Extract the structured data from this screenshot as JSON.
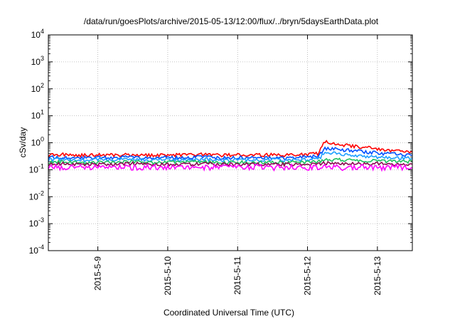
{
  "chart_data": {
    "type": "line",
    "title": "/data/run/goesPlots/archive/2015-05-13/12:00/flux/../bryn/5daysEarthData.plot",
    "xlabel": "Coordinated Universal Time (UTC)",
    "ylabel": "cSv/day",
    "x_scale": "time",
    "y_scale": "log",
    "xlim": [
      "2015-05-08 07:00",
      "2015-05-13 12:00"
    ],
    "ylim": [
      0.0001,
      10000
    ],
    "grid": true,
    "legend": "none",
    "x_ticks": [
      "2015-5-9",
      "2015-5-10",
      "2015-5-11",
      "2015-5-12",
      "2015-5-13"
    ],
    "x_tick_dates": [
      "2015-05-09",
      "2015-05-10",
      "2015-05-11",
      "2015-05-12",
      "2015-05-13"
    ],
    "y_ticks": [
      {
        "base": "10",
        "exp": "-4",
        "value": 0.0001
      },
      {
        "base": "10",
        "exp": "-3",
        "value": 0.001
      },
      {
        "base": "10",
        "exp": "-2",
        "value": 0.01
      },
      {
        "base": "10",
        "exp": "-1",
        "value": 0.1
      },
      {
        "base": "10",
        "exp": "0",
        "value": 1
      },
      {
        "base": "10",
        "exp": "1",
        "value": 10
      },
      {
        "base": "10",
        "exp": "2",
        "value": 100
      },
      {
        "base": "10",
        "exp": "3",
        "value": 1000
      },
      {
        "base": "10",
        "exp": "4",
        "value": 10000
      }
    ],
    "series": [
      {
        "color": "#ff0000",
        "values": [
          [
            "2015-05-08 07:00",
            0.35
          ],
          [
            "2015-05-08 12:00",
            0.37
          ],
          [
            "2015-05-08 18:00",
            0.34
          ],
          [
            "2015-05-09 00:00",
            0.36
          ],
          [
            "2015-05-09 06:00",
            0.35
          ],
          [
            "2015-05-09 12:00",
            0.37
          ],
          [
            "2015-05-09 18:00",
            0.34
          ],
          [
            "2015-05-10 00:00",
            0.36
          ],
          [
            "2015-05-10 06:00",
            0.35
          ],
          [
            "2015-05-10 12:00",
            0.37
          ],
          [
            "2015-05-10 18:00",
            0.34
          ],
          [
            "2015-05-11 00:00",
            0.36
          ],
          [
            "2015-05-11 06:00",
            0.35
          ],
          [
            "2015-05-11 12:00",
            0.36
          ],
          [
            "2015-05-11 18:00",
            0.35
          ],
          [
            "2015-05-12 00:00",
            0.37
          ],
          [
            "2015-05-12 04:00",
            0.4
          ],
          [
            "2015-05-12 06:00",
            1.1
          ],
          [
            "2015-05-12 08:00",
            1.0
          ],
          [
            "2015-05-12 12:00",
            0.85
          ],
          [
            "2015-05-12 18:00",
            0.7
          ],
          [
            "2015-05-13 00:00",
            0.6
          ],
          [
            "2015-05-13 06:00",
            0.5
          ],
          [
            "2015-05-13 12:00",
            0.45
          ]
        ]
      },
      {
        "color": "#0050ff",
        "values": [
          [
            "2015-05-08 07:00",
            0.28
          ],
          [
            "2015-05-08 12:00",
            0.3
          ],
          [
            "2015-05-08 18:00",
            0.27
          ],
          [
            "2015-05-09 00:00",
            0.29
          ],
          [
            "2015-05-09 06:00",
            0.28
          ],
          [
            "2015-05-09 12:00",
            0.3
          ],
          [
            "2015-05-09 18:00",
            0.27
          ],
          [
            "2015-05-10 00:00",
            0.29
          ],
          [
            "2015-05-10 06:00",
            0.28
          ],
          [
            "2015-05-10 12:00",
            0.3
          ],
          [
            "2015-05-10 18:00",
            0.27
          ],
          [
            "2015-05-11 00:00",
            0.29
          ],
          [
            "2015-05-11 06:00",
            0.28
          ],
          [
            "2015-05-11 12:00",
            0.29
          ],
          [
            "2015-05-11 18:00",
            0.28
          ],
          [
            "2015-05-12 00:00",
            0.3
          ],
          [
            "2015-05-12 04:00",
            0.32
          ],
          [
            "2015-05-12 06:00",
            0.6
          ],
          [
            "2015-05-12 08:00",
            0.6
          ],
          [
            "2015-05-12 12:00",
            0.55
          ],
          [
            "2015-05-12 18:00",
            0.48
          ],
          [
            "2015-05-13 00:00",
            0.42
          ],
          [
            "2015-05-13 06:00",
            0.38
          ],
          [
            "2015-05-13 12:00",
            0.35
          ]
        ]
      },
      {
        "color": "#1ea0ff",
        "values": [
          [
            "2015-05-08 07:00",
            0.23
          ],
          [
            "2015-05-08 12:00",
            0.25
          ],
          [
            "2015-05-08 18:00",
            0.22
          ],
          [
            "2015-05-09 00:00",
            0.24
          ],
          [
            "2015-05-09 06:00",
            0.23
          ],
          [
            "2015-05-09 12:00",
            0.25
          ],
          [
            "2015-05-09 18:00",
            0.22
          ],
          [
            "2015-05-10 00:00",
            0.24
          ],
          [
            "2015-05-10 06:00",
            0.23
          ],
          [
            "2015-05-10 12:00",
            0.25
          ],
          [
            "2015-05-10 18:00",
            0.22
          ],
          [
            "2015-05-11 00:00",
            0.24
          ],
          [
            "2015-05-11 06:00",
            0.23
          ],
          [
            "2015-05-11 12:00",
            0.24
          ],
          [
            "2015-05-11 18:00",
            0.23
          ],
          [
            "2015-05-12 00:00",
            0.24
          ],
          [
            "2015-05-12 04:00",
            0.26
          ],
          [
            "2015-05-12 06:00",
            0.42
          ],
          [
            "2015-05-12 08:00",
            0.42
          ],
          [
            "2015-05-12 12:00",
            0.38
          ],
          [
            "2015-05-12 18:00",
            0.33
          ],
          [
            "2015-05-13 00:00",
            0.3
          ],
          [
            "2015-05-13 06:00",
            0.28
          ],
          [
            "2015-05-13 12:00",
            0.27
          ]
        ]
      },
      {
        "color": "#20c060",
        "values": [
          [
            "2015-05-08 07:00",
            0.19
          ],
          [
            "2015-05-08 12:00",
            0.2
          ],
          [
            "2015-05-08 18:00",
            0.18
          ],
          [
            "2015-05-09 00:00",
            0.19
          ],
          [
            "2015-05-09 06:00",
            0.19
          ],
          [
            "2015-05-09 12:00",
            0.2
          ],
          [
            "2015-05-09 18:00",
            0.18
          ],
          [
            "2015-05-10 00:00",
            0.19
          ],
          [
            "2015-05-10 06:00",
            0.19
          ],
          [
            "2015-05-10 12:00",
            0.2
          ],
          [
            "2015-05-10 18:00",
            0.18
          ],
          [
            "2015-05-11 00:00",
            0.19
          ],
          [
            "2015-05-11 06:00",
            0.19
          ],
          [
            "2015-05-11 12:00",
            0.19
          ],
          [
            "2015-05-11 18:00",
            0.19
          ],
          [
            "2015-05-12 00:00",
            0.19
          ],
          [
            "2015-05-12 04:00",
            0.2
          ],
          [
            "2015-05-12 06:00",
            0.24
          ],
          [
            "2015-05-12 08:00",
            0.24
          ],
          [
            "2015-05-12 12:00",
            0.23
          ],
          [
            "2015-05-12 18:00",
            0.22
          ],
          [
            "2015-05-13 00:00",
            0.21
          ],
          [
            "2015-05-13 06:00",
            0.21
          ],
          [
            "2015-05-13 12:00",
            0.2
          ]
        ]
      },
      {
        "color": "#8b0a50",
        "values": [
          [
            "2015-05-08 07:00",
            0.16
          ],
          [
            "2015-05-08 12:00",
            0.17
          ],
          [
            "2015-05-08 18:00",
            0.16
          ],
          [
            "2015-05-09 00:00",
            0.16
          ],
          [
            "2015-05-09 06:00",
            0.16
          ],
          [
            "2015-05-09 12:00",
            0.17
          ],
          [
            "2015-05-09 18:00",
            0.16
          ],
          [
            "2015-05-10 00:00",
            0.16
          ],
          [
            "2015-05-10 06:00",
            0.16
          ],
          [
            "2015-05-10 12:00",
            0.17
          ],
          [
            "2015-05-10 18:00",
            0.16
          ],
          [
            "2015-05-11 00:00",
            0.16
          ],
          [
            "2015-05-11 06:00",
            0.16
          ],
          [
            "2015-05-11 12:00",
            0.16
          ],
          [
            "2015-05-11 18:00",
            0.16
          ],
          [
            "2015-05-12 00:00",
            0.16
          ],
          [
            "2015-05-12 04:00",
            0.16
          ],
          [
            "2015-05-12 06:00",
            0.18
          ],
          [
            "2015-05-12 08:00",
            0.18
          ],
          [
            "2015-05-12 12:00",
            0.17
          ],
          [
            "2015-05-12 18:00",
            0.17
          ],
          [
            "2015-05-13 00:00",
            0.17
          ],
          [
            "2015-05-13 06:00",
            0.16
          ],
          [
            "2015-05-13 12:00",
            0.16
          ]
        ]
      },
      {
        "color": "#ff00ff",
        "values": [
          [
            "2015-05-08 07:00",
            0.13
          ],
          [
            "2015-05-08 12:00",
            0.12
          ],
          [
            "2015-05-08 18:00",
            0.13
          ],
          [
            "2015-05-09 00:00",
            0.12
          ],
          [
            "2015-05-09 06:00",
            0.13
          ],
          [
            "2015-05-09 12:00",
            0.12
          ],
          [
            "2015-05-09 18:00",
            0.13
          ],
          [
            "2015-05-10 00:00",
            0.12
          ],
          [
            "2015-05-10 06:00",
            0.13
          ],
          [
            "2015-05-10 12:00",
            0.12
          ],
          [
            "2015-05-10 18:00",
            0.13
          ],
          [
            "2015-05-11 00:00",
            0.12
          ],
          [
            "2015-05-11 06:00",
            0.13
          ],
          [
            "2015-05-11 12:00",
            0.12
          ],
          [
            "2015-05-11 18:00",
            0.13
          ],
          [
            "2015-05-12 00:00",
            0.12
          ],
          [
            "2015-05-12 04:00",
            0.13
          ],
          [
            "2015-05-12 06:00",
            0.13
          ],
          [
            "2015-05-12 08:00",
            0.13
          ],
          [
            "2015-05-12 12:00",
            0.12
          ],
          [
            "2015-05-12 18:00",
            0.13
          ],
          [
            "2015-05-13 00:00",
            0.12
          ],
          [
            "2015-05-13 06:00",
            0.13
          ],
          [
            "2015-05-13 12:00",
            0.12
          ]
        ]
      }
    ]
  }
}
